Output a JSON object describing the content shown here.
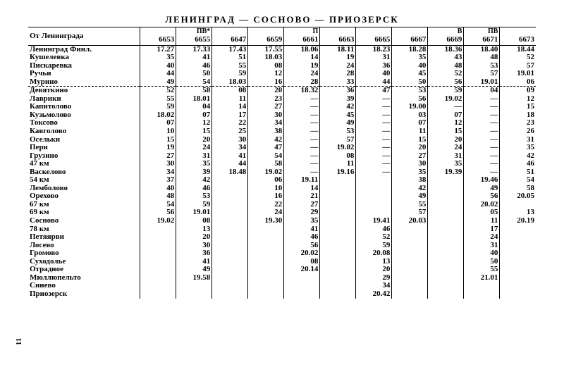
{
  "title": "ЛЕНИНГРАД — СОСНОВО — ПРИОЗЕРСК",
  "page_number": "11",
  "header": {
    "station_col": "От  Ленинграда",
    "trains": [
      {
        "sup": "",
        "num": "6653"
      },
      {
        "sup": "ПВ*",
        "num": "6655"
      },
      {
        "sup": "",
        "num": "6647"
      },
      {
        "sup": "",
        "num": "6659"
      },
      {
        "sup": "П",
        "num": "6661"
      },
      {
        "sup": "",
        "num": "6663"
      },
      {
        "sup": "",
        "num": "6665"
      },
      {
        "sup": "",
        "num": "6667"
      },
      {
        "sup": "В",
        "num": "6669"
      },
      {
        "sup": "ПВ",
        "num": "6671"
      },
      {
        "sup": "",
        "num": "6673"
      }
    ]
  },
  "rows": [
    {
      "st": "Ленинград  Финл.",
      "bold": 1,
      "t": [
        "17.27",
        "17.33",
        "17.43",
        "17.55",
        "18.06",
        "18.11",
        "18.23",
        "18.28",
        "18.36",
        "18.40",
        "18.44"
      ]
    },
    {
      "st": "Кушелевка",
      "t": [
        "35",
        "41",
        "51",
        "18.03",
        "14",
        "19",
        "31",
        "35",
        "43",
        "48",
        "52"
      ]
    },
    {
      "st": "Пискаревка",
      "t": [
        "40",
        "46",
        "55",
        "08",
        "19",
        "24",
        "36",
        "40",
        "48",
        "53",
        "57"
      ]
    },
    {
      "st": "Ручьи",
      "t": [
        "44",
        "50",
        "59",
        "12",
        "24",
        "28",
        "40",
        "45",
        "52",
        "57",
        "19.01"
      ]
    },
    {
      "st": "Мурино",
      "murino": 1,
      "t": [
        "49",
        "54",
        "18.03",
        "16",
        "28",
        "33",
        "44",
        "50",
        "56",
        "19.01",
        "06"
      ]
    },
    {
      "st": "Девяткино",
      "t": [
        "52",
        "58",
        "08",
        "20",
        "18.32",
        "36",
        "47",
        "53",
        "59",
        "04",
        "09"
      ]
    },
    {
      "st": "Лаврики",
      "t": [
        "55",
        "18.01",
        "11",
        "23",
        "—",
        "39",
        "—",
        "56",
        "19.02",
        "—",
        "12"
      ]
    },
    {
      "st": "Капитолово",
      "t": [
        "59",
        "04",
        "14",
        "27",
        "—",
        "42",
        "—",
        "19.00",
        "—",
        "—",
        "15"
      ]
    },
    {
      "st": "Кузьмолово",
      "bold": 1,
      "t": [
        "18.02",
        "07",
        "17",
        "30",
        "—",
        "45",
        "—",
        "03",
        "07",
        "—",
        "18"
      ]
    },
    {
      "st": "Токсово",
      "t": [
        "07",
        "12",
        "22",
        "34",
        "—",
        "49",
        "—",
        "07",
        "12",
        "—",
        "23"
      ]
    },
    {
      "st": "Кавголово",
      "t": [
        "10",
        "15",
        "25",
        "38",
        "—",
        "53",
        "—",
        "11",
        "15",
        "—",
        "26"
      ]
    },
    {
      "st": "Осельки",
      "t": [
        "15",
        "20",
        "30",
        "42",
        "—",
        "57",
        "—",
        "15",
        "20",
        "—",
        "31"
      ]
    },
    {
      "st": "Пери",
      "bold": 1,
      "t": [
        "19",
        "24",
        "34",
        "47",
        "—",
        "19.02",
        "—",
        "20",
        "24",
        "—",
        "35"
      ]
    },
    {
      "st": "Грузино",
      "t": [
        "27",
        "31",
        "41",
        "54",
        "—",
        "08",
        "—",
        "27",
        "31",
        "—",
        "42"
      ]
    },
    {
      "st": "47 км",
      "bold": 1,
      "t": [
        "30",
        "35",
        "44",
        "58",
        "—",
        "11",
        "—",
        "30",
        "35",
        "—",
        "46"
      ]
    },
    {
      "st": "Васкелово",
      "t": [
        "34",
        "39",
        "18.48",
        "19.02",
        "—",
        "19.16",
        "—",
        "35",
        "19.39",
        "—",
        "51"
      ]
    },
    {
      "st": "54 км",
      "bold": 1,
      "t": [
        "37",
        "42",
        "",
        "06",
        "19.11",
        "",
        "",
        "38",
        "",
        "19.46",
        "54"
      ]
    },
    {
      "st": "Лемболово",
      "t": [
        "40",
        "46",
        "",
        "10",
        "14",
        "",
        "",
        "42",
        "",
        "49",
        "58"
      ]
    },
    {
      "st": "Орехово",
      "t": [
        "48",
        "53",
        "",
        "16",
        "21",
        "",
        "",
        "49",
        "",
        "56",
        "20.05"
      ]
    },
    {
      "st": "67 км",
      "bold": 1,
      "t": [
        "54",
        "59",
        "",
        "22",
        "27",
        "",
        "",
        "55",
        "",
        "20.02",
        ""
      ]
    },
    {
      "st": "69 км",
      "bold": 1,
      "t": [
        "56",
        "19.01",
        "",
        "24",
        "29",
        "",
        "",
        "57",
        "",
        "05",
        "13"
      ]
    },
    {
      "st": "Сосново",
      "bold": 1,
      "t": [
        "19.02",
        "08",
        "",
        "19.30",
        "35",
        "",
        "19.41",
        "20.03",
        "",
        "11",
        "20.19"
      ]
    },
    {
      "st": "78 км",
      "bold": 1,
      "t": [
        "",
        "13",
        "",
        "",
        "41",
        "",
        "46",
        "",
        "",
        "17",
        ""
      ]
    },
    {
      "st": "Петяярви",
      "t": [
        "",
        "20",
        "",
        "",
        "46",
        "",
        "52",
        "",
        "",
        "24",
        ""
      ]
    },
    {
      "st": "Лосево",
      "t": [
        "",
        "30",
        "",
        "",
        "56",
        "",
        "59",
        "",
        "",
        "31",
        ""
      ]
    },
    {
      "st": "Громово",
      "t": [
        "",
        "36",
        "",
        "",
        "20.02",
        "",
        "20.08",
        "",
        "",
        "40",
        ""
      ]
    },
    {
      "st": "Суходолье",
      "t": [
        "",
        "41",
        "",
        "",
        "08",
        "",
        "13",
        "",
        "",
        "50",
        ""
      ]
    },
    {
      "st": "Отрадное",
      "t": [
        "",
        "49",
        "",
        "",
        "20.14",
        "",
        "20",
        "",
        "",
        "55",
        ""
      ]
    },
    {
      "st": "Мюллюпельто",
      "t": [
        "",
        "19.58",
        "",
        "",
        "",
        "",
        "29",
        "",
        "",
        "21.01",
        ""
      ]
    },
    {
      "st": "Синево",
      "t": [
        "",
        "",
        "",
        "",
        "",
        "",
        "34",
        "",
        "",
        "",
        ""
      ]
    },
    {
      "st": "Приозерск",
      "bold": 1,
      "t": [
        "",
        "",
        "",
        "",
        "",
        "",
        "20.42",
        "",
        "",
        "",
        ""
      ]
    }
  ]
}
